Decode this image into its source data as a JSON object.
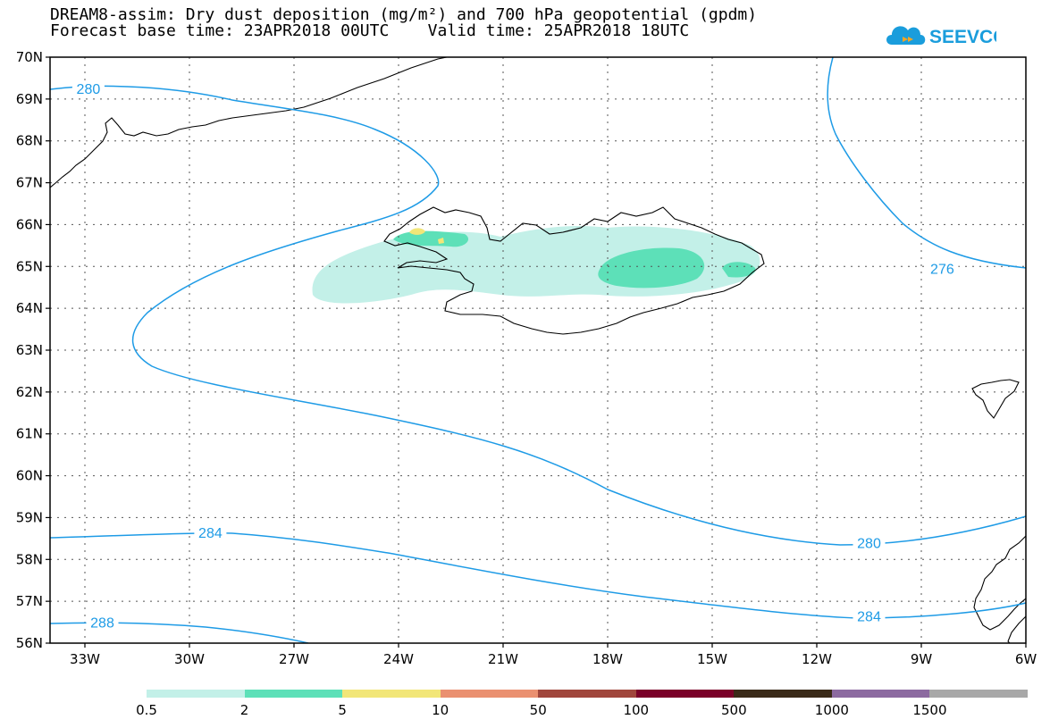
{
  "title": {
    "line1": "DREAM8-assim: Dry dust deposition (mg/m²) and 700 hPa geopotential (gpdm)",
    "line2": "Forecast base time: 23APR2018 00UTC    Valid time: 25APR2018 18UTC"
  },
  "logo": {
    "text": "SEEVCCC",
    "icon": "cloud-icon",
    "color": "#1a9ddc"
  },
  "map": {
    "lat_labels": [
      "70N",
      "69N",
      "68N",
      "67N",
      "66N",
      "65N",
      "64N",
      "63N",
      "62N",
      "61N",
      "60N",
      "59N",
      "58N",
      "57N",
      "56N"
    ],
    "lon_labels": [
      "33W",
      "30W",
      "27W",
      "24W",
      "21W",
      "18W",
      "15W",
      "12W",
      "9W",
      "6W"
    ],
    "lon_range": [
      -34,
      -6
    ],
    "lat_range": [
      56,
      70
    ],
    "contour_color": "#1e9be6",
    "contour_labels": [
      {
        "value": "280",
        "lon": -32.9,
        "lat": 69.25
      },
      {
        "value": "276",
        "lon": -8.4,
        "lat": 64.95
      },
      {
        "value": "284",
        "lon": -29.4,
        "lat": 58.65
      },
      {
        "value": "280",
        "lon": -10.5,
        "lat": 58.4
      },
      {
        "value": "288",
        "lon": -32.5,
        "lat": 56.5
      },
      {
        "value": "284",
        "lon": -10.5,
        "lat": 56.65
      }
    ]
  },
  "colorbar": {
    "labels": [
      "0.5",
      "2",
      "5",
      "10",
      "50",
      "100",
      "500",
      "1000",
      "1500"
    ],
    "colors": [
      "#c3f0e8",
      "#5de0b8",
      "#f2e678",
      "#ea9070",
      "#a0463c",
      "#7a0028",
      "#3a2a18",
      "#8c6aa0",
      "#a8a8a8"
    ]
  }
}
